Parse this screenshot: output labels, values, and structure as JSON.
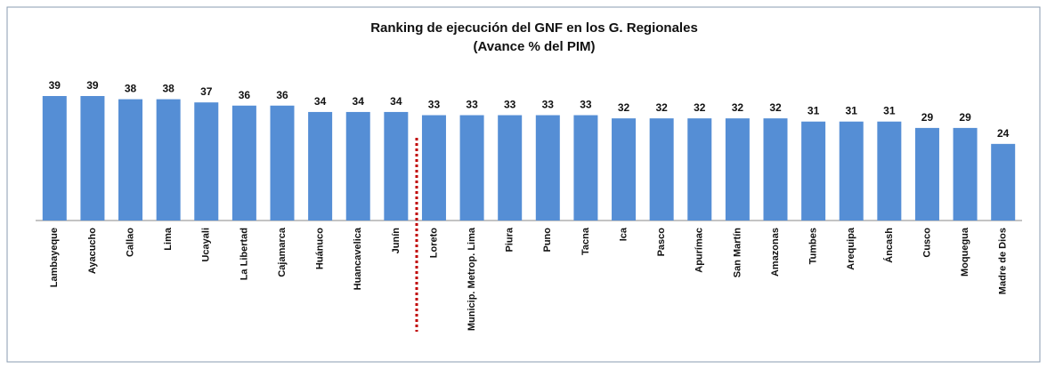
{
  "chart_data": {
    "type": "bar",
    "title": "Ranking de ejecución del GNF en los G. Regionales",
    "subtitle": "(Avance % del PIM)",
    "categories": [
      "Lambayeque",
      "Ayacucho",
      "Callao",
      "Lima",
      "Ucayali",
      "La Libertad",
      "Cajamarca",
      "Huánuco",
      "Huancavelica",
      "Junín",
      "Loreto",
      "Municip. Metrop. Lima",
      "Piura",
      "Puno",
      "Tacna",
      "Ica",
      "Pasco",
      "Apurímac",
      "San Martín",
      "Amazonas",
      "Tumbes",
      "Arequipa",
      "Áncash",
      "Cusco",
      "Moquegua",
      "Madre de Dios"
    ],
    "values": [
      39,
      39,
      38,
      38,
      37,
      36,
      36,
      34,
      34,
      34,
      33,
      33,
      33,
      33,
      33,
      32,
      32,
      32,
      32,
      32,
      31,
      31,
      31,
      29,
      29,
      24
    ],
    "color": "#558ed5"
  }
}
